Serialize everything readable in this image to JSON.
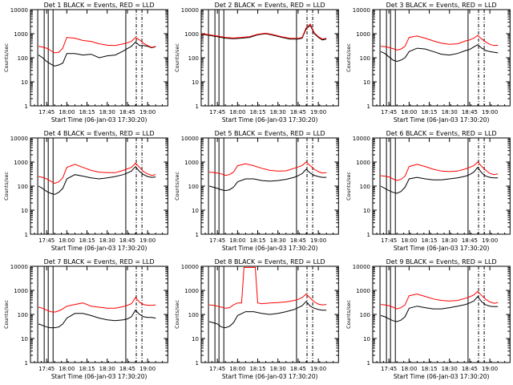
{
  "colors": {
    "events": "#000000",
    "lld": "#ff0000",
    "axes": "#000000",
    "background": "#ffffff"
  },
  "common": {
    "ylabel": "Counts/sec",
    "xlabel": "Start Time (06-Jan-03 17:30:20)",
    "scale": "log",
    "ylim": [
      1,
      10000
    ],
    "y_ticks": [
      "1",
      "10",
      "100",
      "1000",
      "10000"
    ],
    "x_range_hours": [
      17.55,
      19.25
    ],
    "x_ticks": [
      {
        "t": 17.75,
        "label": "17:45"
      },
      {
        "t": 18.0,
        "label": "18:00"
      },
      {
        "t": 18.25,
        "label": "18:15"
      },
      {
        "t": 18.5,
        "label": "18:30"
      },
      {
        "t": 18.75,
        "label": "18:45"
      },
      {
        "t": 19.0,
        "label": "19:00"
      }
    ]
  },
  "chart_data": [
    {
      "type": "line",
      "title": "Det 1  BLACK = Events, RED = LLD",
      "solid_markers": [
        17.64,
        17.72,
        17.77,
        17.83,
        18.73
      ],
      "dashed_markers": [
        18.86,
        18.93
      ],
      "series": [
        {
          "key": "events",
          "x": [
            17.65,
            17.7,
            17.75,
            17.8,
            17.85,
            17.9,
            17.95,
            18.0,
            18.1,
            18.2,
            18.3,
            18.4,
            18.5,
            18.6,
            18.7,
            18.75,
            18.8,
            18.85,
            18.9,
            18.95,
            19.0,
            19.05,
            19.1
          ],
          "y": [
            130,
            100,
            70,
            55,
            45,
            50,
            60,
            150,
            150,
            130,
            140,
            100,
            120,
            130,
            190,
            240,
            300,
            450,
            320,
            320,
            300,
            260,
            290
          ]
        },
        {
          "key": "lld",
          "x": [
            17.65,
            17.7,
            17.75,
            17.8,
            17.85,
            17.9,
            17.95,
            18.0,
            18.1,
            18.2,
            18.3,
            18.4,
            18.5,
            18.6,
            18.7,
            18.75,
            18.8,
            18.85,
            18.9,
            18.95,
            19.0,
            19.05,
            19.1
          ],
          "y": [
            300,
            280,
            250,
            200,
            160,
            170,
            250,
            700,
            650,
            520,
            480,
            380,
            330,
            320,
            380,
            420,
            480,
            700,
            550,
            400,
            320,
            270,
            300
          ]
        }
      ]
    },
    {
      "type": "line",
      "title": "Det 2  BLACK = Events, RED = LLD",
      "solid_markers": [
        17.64,
        17.72,
        17.77,
        17.83,
        18.73
      ],
      "dashed_markers": [
        18.86,
        18.93
      ],
      "series": [
        {
          "key": "events",
          "x": [
            17.55,
            17.65,
            17.75,
            17.85,
            17.95,
            18.05,
            18.15,
            18.25,
            18.35,
            18.45,
            18.55,
            18.65,
            18.75,
            18.8,
            18.85,
            18.9,
            18.95,
            19.0,
            19.05,
            19.1
          ],
          "y": [
            950,
            850,
            750,
            650,
            620,
            650,
            700,
            900,
            1000,
            850,
            700,
            600,
            600,
            650,
            1600,
            2200,
            1000,
            700,
            550,
            600
          ]
        },
        {
          "key": "lld",
          "x": [
            17.55,
            17.65,
            17.75,
            17.85,
            17.95,
            18.05,
            18.15,
            18.25,
            18.35,
            18.45,
            18.55,
            18.65,
            18.75,
            18.8,
            18.85,
            18.9,
            18.95,
            19.0,
            19.05,
            19.1
          ],
          "y": [
            1000,
            900,
            800,
            700,
            660,
            700,
            760,
            950,
            1050,
            900,
            740,
            640,
            640,
            700,
            1800,
            2500,
            1100,
            750,
            600,
            650
          ]
        }
      ]
    },
    {
      "type": "line",
      "title": "Det 3  BLACK = Events, RED = LLD",
      "solid_markers": [
        17.64,
        17.72,
        17.77,
        17.83,
        18.73
      ],
      "dashed_markers": [
        18.86,
        18.93
      ],
      "series": [
        {
          "key": "events",
          "x": [
            17.65,
            17.7,
            17.75,
            17.8,
            17.85,
            17.9,
            17.95,
            18.0,
            18.1,
            18.2,
            18.3,
            18.4,
            18.5,
            18.6,
            18.7,
            18.75,
            18.8,
            18.85,
            18.9,
            18.95,
            19.0,
            19.05,
            19.1
          ],
          "y": [
            180,
            150,
            110,
            80,
            70,
            80,
            100,
            180,
            250,
            230,
            180,
            140,
            130,
            150,
            200,
            220,
            280,
            350,
            250,
            200,
            180,
            170,
            160
          ]
        },
        {
          "key": "lld",
          "x": [
            17.65,
            17.7,
            17.75,
            17.8,
            17.85,
            17.9,
            17.95,
            18.0,
            18.1,
            18.2,
            18.3,
            18.4,
            18.5,
            18.6,
            18.7,
            18.75,
            18.8,
            18.85,
            18.9,
            18.95,
            19.0,
            19.05,
            19.1
          ],
          "y": [
            300,
            290,
            270,
            240,
            210,
            230,
            300,
            700,
            800,
            650,
            500,
            400,
            360,
            380,
            500,
            550,
            650,
            850,
            600,
            450,
            360,
            320,
            330
          ]
        }
      ]
    },
    {
      "type": "line",
      "title": "Det 4  BLACK = Events, RED = LLD",
      "solid_markers": [
        17.64,
        17.72,
        17.77,
        17.83,
        18.73
      ],
      "dashed_markers": [
        18.86,
        18.93
      ],
      "series": [
        {
          "key": "events",
          "x": [
            17.65,
            17.7,
            17.75,
            17.8,
            17.85,
            17.9,
            17.95,
            18.0,
            18.1,
            18.2,
            18.3,
            18.4,
            18.5,
            18.6,
            18.7,
            18.75,
            18.8,
            18.85,
            18.9,
            18.95,
            19.0,
            19.05,
            19.1
          ],
          "y": [
            100,
            80,
            60,
            50,
            45,
            55,
            80,
            200,
            300,
            260,
            220,
            200,
            220,
            250,
            300,
            350,
            420,
            650,
            400,
            300,
            250,
            230,
            240
          ]
        },
        {
          "key": "lld",
          "x": [
            17.65,
            17.7,
            17.75,
            17.8,
            17.85,
            17.9,
            17.95,
            18.0,
            18.1,
            18.2,
            18.3,
            18.4,
            18.5,
            18.6,
            18.7,
            18.75,
            18.8,
            18.85,
            18.9,
            18.95,
            19.0,
            19.05,
            19.1
          ],
          "y": [
            250,
            230,
            200,
            160,
            130,
            150,
            220,
            600,
            800,
            600,
            450,
            380,
            360,
            360,
            450,
            520,
            600,
            900,
            600,
            400,
            320,
            280,
            300
          ]
        }
      ]
    },
    {
      "type": "line",
      "title": "Det 5  BLACK = Events, RED = LLD",
      "solid_markers": [
        17.64,
        17.72,
        17.77,
        17.83,
        18.73
      ],
      "dashed_markers": [
        18.86,
        18.93
      ],
      "series": [
        {
          "key": "events",
          "x": [
            17.65,
            17.7,
            17.75,
            17.8,
            17.85,
            17.9,
            17.95,
            18.0,
            18.1,
            18.2,
            18.3,
            18.4,
            18.5,
            18.6,
            18.7,
            18.75,
            18.8,
            18.85,
            18.9,
            18.95,
            19.0,
            19.05,
            19.1
          ],
          "y": [
            100,
            90,
            80,
            70,
            65,
            70,
            90,
            150,
            200,
            200,
            170,
            160,
            170,
            190,
            230,
            270,
            330,
            500,
            350,
            280,
            250,
            230,
            230
          ]
        },
        {
          "key": "lld",
          "x": [
            17.65,
            17.7,
            17.75,
            17.8,
            17.85,
            17.9,
            17.95,
            18.0,
            18.1,
            18.2,
            18.3,
            18.4,
            18.5,
            18.6,
            18.7,
            18.75,
            18.8,
            18.85,
            18.9,
            18.95,
            19.0,
            19.05,
            19.1
          ],
          "y": [
            380,
            370,
            350,
            320,
            280,
            300,
            380,
            700,
            850,
            700,
            550,
            450,
            420,
            430,
            550,
            620,
            720,
            1000,
            700,
            500,
            400,
            350,
            360
          ]
        }
      ]
    },
    {
      "type": "line",
      "title": "Det 6  BLACK = Events, RED = LLD",
      "solid_markers": [
        17.64,
        17.72,
        17.77,
        17.83,
        18.73
      ],
      "dashed_markers": [
        18.86,
        18.93
      ],
      "series": [
        {
          "key": "events",
          "x": [
            17.65,
            17.7,
            17.75,
            17.8,
            17.85,
            17.9,
            17.95,
            18.0,
            18.1,
            18.2,
            18.3,
            18.4,
            18.5,
            18.6,
            18.7,
            18.75,
            18.8,
            18.85,
            18.9,
            18.95,
            19.0,
            19.05,
            19.1
          ],
          "y": [
            100,
            80,
            65,
            55,
            50,
            60,
            90,
            200,
            230,
            200,
            180,
            180,
            200,
            220,
            260,
            300,
            380,
            600,
            350,
            260,
            230,
            220,
            220
          ]
        },
        {
          "key": "lld",
          "x": [
            17.65,
            17.7,
            17.75,
            17.8,
            17.85,
            17.9,
            17.95,
            18.0,
            18.1,
            18.2,
            18.3,
            18.4,
            18.5,
            18.6,
            18.7,
            18.75,
            18.8,
            18.85,
            18.9,
            18.95,
            19.0,
            19.05,
            19.1
          ],
          "y": [
            270,
            260,
            240,
            200,
            170,
            190,
            260,
            650,
            800,
            650,
            500,
            420,
            400,
            420,
            520,
            600,
            700,
            1000,
            650,
            450,
            340,
            300,
            320
          ]
        }
      ]
    },
    {
      "type": "line",
      "title": "Det 7  BLACK = Events, RED = LLD",
      "solid_markers": [
        17.64,
        17.72,
        17.77,
        17.83,
        18.73
      ],
      "dashed_markers": [
        18.86,
        18.93
      ],
      "series": [
        {
          "key": "events",
          "x": [
            17.65,
            17.7,
            17.75,
            17.8,
            17.85,
            17.9,
            17.95,
            18.0,
            18.1,
            18.2,
            18.3,
            18.4,
            18.5,
            18.6,
            18.7,
            18.75,
            18.8,
            18.85,
            18.9,
            18.95,
            19.0,
            19.05,
            19.1
          ],
          "y": [
            40,
            35,
            30,
            28,
            28,
            30,
            40,
            70,
            110,
            110,
            90,
            70,
            60,
            55,
            60,
            65,
            80,
            150,
            100,
            80,
            75,
            75,
            70
          ]
        },
        {
          "key": "lld",
          "x": [
            17.65,
            17.7,
            17.75,
            17.8,
            17.85,
            17.9,
            17.95,
            18.0,
            18.1,
            18.2,
            18.3,
            18.4,
            18.5,
            18.6,
            18.7,
            18.75,
            18.8,
            18.85,
            18.9,
            18.95,
            19.0,
            19.05,
            19.1
          ],
          "y": [
            200,
            180,
            150,
            130,
            125,
            140,
            170,
            220,
            260,
            300,
            220,
            200,
            180,
            180,
            210,
            240,
            280,
            500,
            320,
            260,
            240,
            240,
            250
          ]
        }
      ]
    },
    {
      "type": "line",
      "title": "Det 8  BLACK = Events, RED = LLD",
      "solid_markers": [
        17.64,
        17.72,
        17.77,
        17.83,
        18.73
      ],
      "dashed_markers": [
        18.86,
        18.93
      ],
      "series": [
        {
          "key": "events",
          "x": [
            17.65,
            17.7,
            17.75,
            17.8,
            17.85,
            17.9,
            17.95,
            18.0,
            18.1,
            18.2,
            18.3,
            18.4,
            18.5,
            18.6,
            18.7,
            18.75,
            18.8,
            18.85,
            18.9,
            18.95,
            19.0,
            19.05,
            19.1
          ],
          "y": [
            50,
            45,
            40,
            30,
            28,
            32,
            45,
            90,
            130,
            130,
            110,
            100,
            110,
            130,
            160,
            190,
            230,
            350,
            220,
            180,
            160,
            150,
            150
          ]
        },
        {
          "key": "lld",
          "x": [
            17.65,
            17.7,
            17.75,
            17.8,
            17.85,
            17.9,
            17.95,
            18.0,
            18.05,
            18.08,
            18.1,
            18.15,
            18.2,
            18.22,
            18.25,
            18.3,
            18.4,
            18.5,
            18.6,
            18.7,
            18.75,
            18.8,
            18.85,
            18.9,
            18.95,
            19.0,
            19.05,
            19.1
          ],
          "y": [
            250,
            240,
            220,
            200,
            180,
            190,
            250,
            300,
            300,
            9000,
            9000,
            9000,
            9000,
            9000,
            300,
            280,
            300,
            310,
            330,
            380,
            420,
            500,
            700,
            480,
            330,
            270,
            250,
            260
          ]
        }
      ]
    },
    {
      "type": "line",
      "title": "Det 9  BLACK = Events, RED = LLD",
      "solid_markers": [
        17.64,
        17.72,
        17.77,
        17.83,
        18.73
      ],
      "dashed_markers": [
        18.86,
        18.93
      ],
      "series": [
        {
          "key": "events",
          "x": [
            17.65,
            17.7,
            17.75,
            17.8,
            17.85,
            17.9,
            17.95,
            18.0,
            18.1,
            18.2,
            18.3,
            18.4,
            18.5,
            18.6,
            18.7,
            18.75,
            18.8,
            18.85,
            18.9,
            18.95,
            19.0,
            19.05,
            19.1
          ],
          "y": [
            90,
            80,
            65,
            55,
            50,
            58,
            80,
            180,
            220,
            190,
            170,
            170,
            190,
            220,
            260,
            300,
            360,
            550,
            330,
            250,
            220,
            210,
            210
          ]
        },
        {
          "key": "lld",
          "x": [
            17.65,
            17.7,
            17.75,
            17.8,
            17.85,
            17.9,
            17.95,
            18.0,
            18.1,
            18.2,
            18.3,
            18.4,
            18.5,
            18.6,
            18.7,
            18.75,
            18.8,
            18.85,
            18.9,
            18.95,
            19.0,
            19.05,
            19.1
          ],
          "y": [
            260,
            250,
            230,
            200,
            170,
            190,
            250,
            600,
            700,
            560,
            440,
            380,
            360,
            380,
            470,
            540,
            640,
            900,
            600,
            420,
            330,
            290,
            310
          ]
        }
      ]
    }
  ]
}
